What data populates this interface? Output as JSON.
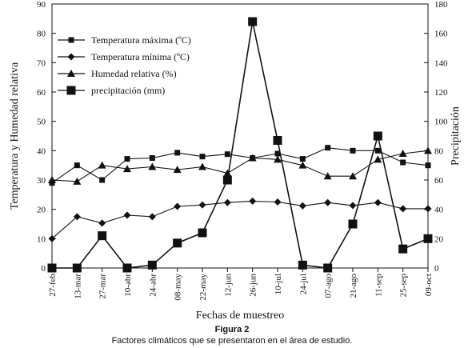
{
  "chart_data": {
    "type": "line",
    "x_categories": [
      "27-feb",
      "13-mar",
      "27-mar",
      "10-abr",
      "24-abr",
      "08-may",
      "22-may",
      "12-jun",
      "26-jun",
      "10-jul",
      "24-jul",
      "07-ago",
      "21-ago",
      "11-sep",
      "25-sep",
      "09-oct"
    ],
    "xlabel": "Fechas de muestreo",
    "ylabel_left": "Temperatura y Humedad relativa",
    "ylabel_right": "Precipitación",
    "ylim_left": [
      0,
      90
    ],
    "yticks_left": [
      0,
      10,
      20,
      30,
      40,
      50,
      60,
      70,
      80,
      90
    ],
    "ylim_right": [
      0,
      180
    ],
    "yticks_right": [
      0,
      20,
      40,
      60,
      80,
      100,
      120,
      140,
      160,
      180
    ],
    "legend_position": "top-left",
    "series": [
      {
        "name": "Temperatura máxima (ºC)",
        "marker": "square-small",
        "axis": "left",
        "values": [
          29,
          35,
          30,
          37.2,
          37.5,
          39.3,
          38,
          38.8,
          37.5,
          39,
          37.2,
          41,
          40,
          40,
          36,
          35
        ]
      },
      {
        "name": "Temperatura mínima (ºC)",
        "marker": "diamond",
        "axis": "left",
        "values": [
          10,
          17.5,
          15.3,
          18,
          17.5,
          21,
          21.5,
          22.3,
          22.8,
          22.5,
          21.2,
          22.3,
          21.3,
          22.3,
          20.2,
          20.2
        ]
      },
      {
        "name": "Humedad relativa (%)",
        "marker": "triangle",
        "axis": "left",
        "values": [
          30,
          29.5,
          35,
          33.8,
          34.5,
          33.5,
          34.5,
          32.3,
          37.5,
          37,
          35,
          31.3,
          31.3,
          37,
          39,
          40
        ]
      },
      {
        "name": "precipitación (mm)",
        "marker": "square-large",
        "axis": "right",
        "values": [
          0,
          0,
          22,
          0,
          2,
          17,
          24,
          60,
          168,
          87,
          2,
          0,
          30,
          90,
          13,
          20
        ]
      }
    ]
  },
  "caption": {
    "title": "Figura 2",
    "text": "Factores climáticos que se presentaron en el área de estudio."
  }
}
